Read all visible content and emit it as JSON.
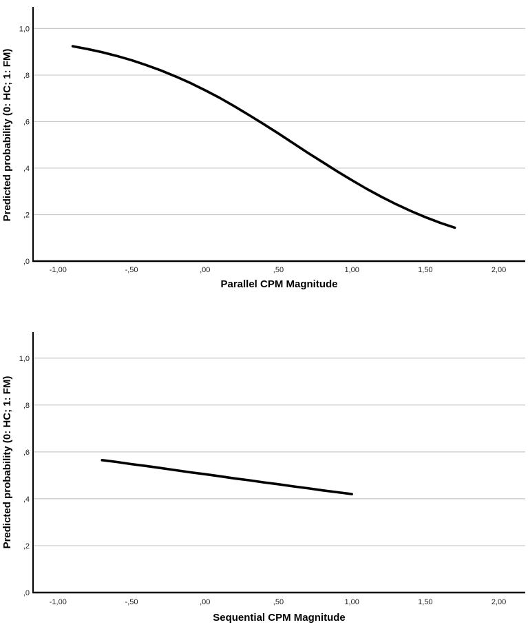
{
  "figure": {
    "background": "#ffffff",
    "axis_color": "#000000",
    "grid_color": "#c9c9c9",
    "tick_color": "#1f1f1f",
    "curve_color": "#000000"
  },
  "chart_data": [
    {
      "type": "line",
      "title": "",
      "xlabel": "Parallel CPM Magnitude",
      "ylabel": "Predicted probability (0: HC; 1: FM)",
      "xlim": [
        -1.17,
        2.18
      ],
      "ylim": [
        0,
        1.093
      ],
      "grid": "horizontal",
      "legend": "none",
      "x_ticks": {
        "values": [
          -1,
          -0.5,
          0,
          0.5,
          1,
          1.5,
          2
        ],
        "labels": [
          "-1,00",
          "-,50",
          ",00",
          ",50",
          "1,00",
          "1,50",
          "2,00"
        ]
      },
      "y_ticks": {
        "values": [
          1,
          0.8,
          0.6,
          0.4,
          0.2,
          0
        ],
        "labels": [
          "1,0",
          ",8",
          ",6",
          ",4",
          ",2",
          ",0"
        ]
      },
      "series": [
        {
          "name": "predicted-probability-vs-parallel-cpm",
          "x": [
            -0.9,
            -0.8,
            -0.7,
            -0.6,
            -0.5,
            -0.4,
            -0.3,
            -0.2,
            -0.1,
            0.0,
            0.1,
            0.2,
            0.3,
            0.4,
            0.5,
            0.6,
            0.7,
            0.8,
            0.9,
            1.0,
            1.1,
            1.2,
            1.3,
            1.4,
            1.5,
            1.6,
            1.7
          ],
          "y": [
            0.924,
            0.912,
            0.898,
            0.882,
            0.864,
            0.843,
            0.82,
            0.794,
            0.766,
            0.735,
            0.702,
            0.666,
            0.628,
            0.589,
            0.549,
            0.507,
            0.466,
            0.426,
            0.386,
            0.348,
            0.311,
            0.277,
            0.245,
            0.216,
            0.189,
            0.165,
            0.144
          ]
        }
      ]
    },
    {
      "type": "line",
      "title": "",
      "xlabel": "Sequential CPM Magnitude",
      "ylabel": "Predicted probability (0: HC; 1: FM)",
      "xlim": [
        -1.17,
        2.18
      ],
      "ylim": [
        0,
        1.111
      ],
      "grid": "horizontal",
      "legend": "none",
      "x_ticks": {
        "values": [
          -1,
          -0.5,
          0,
          0.5,
          1,
          1.5,
          2
        ],
        "labels": [
          "-1,00",
          "-,50",
          ",00",
          ",50",
          "1,00",
          "1,50",
          "2,00"
        ]
      },
      "y_ticks": {
        "values": [
          1,
          0.8,
          0.6,
          0.4,
          0.2,
          0
        ],
        "labels": [
          "1,0",
          ",8",
          ",6",
          ",4",
          ",2",
          ",0"
        ]
      },
      "series": [
        {
          "name": "predicted-probability-vs-sequential-cpm",
          "x": [
            -0.7,
            -0.6,
            -0.5,
            -0.4,
            -0.3,
            -0.2,
            -0.1,
            0.0,
            0.1,
            0.2,
            0.3,
            0.4,
            0.5,
            0.6,
            0.7,
            0.8,
            0.9,
            1.0
          ],
          "y": [
            0.565,
            0.557,
            0.548,
            0.54,
            0.531,
            0.522,
            0.513,
            0.505,
            0.496,
            0.487,
            0.479,
            0.47,
            0.462,
            0.453,
            0.445,
            0.436,
            0.428,
            0.42
          ]
        }
      ]
    }
  ]
}
